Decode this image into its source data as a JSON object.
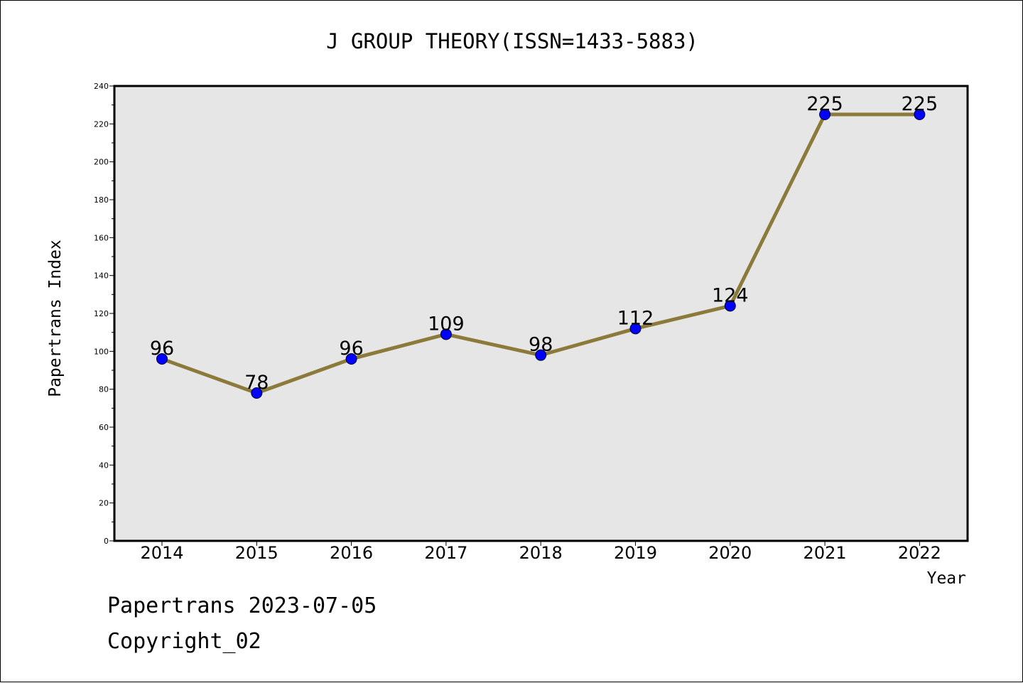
{
  "chart_data": {
    "type": "line",
    "title": "J GROUP THEORY(ISSN=1433-5883)",
    "xlabel": "Year",
    "ylabel": "Papertrans Index",
    "categories": [
      "2014",
      "2015",
      "2016",
      "2017",
      "2018",
      "2019",
      "2020",
      "2021",
      "2022"
    ],
    "series": [
      {
        "values": [
          96,
          78,
          96,
          109,
          98,
          112,
          124,
          225,
          225
        ]
      }
    ],
    "ylim": [
      0,
      240
    ],
    "yticks": [
      0,
      20,
      40,
      60,
      80,
      100,
      120,
      140,
      160,
      180,
      200,
      220,
      240
    ],
    "grid": false,
    "colors": {
      "line": "#8b7a3a",
      "marker": "#0000ff",
      "plot_bg": "#e6e6e6"
    }
  },
  "footer": {
    "date_line": "Papertrans 2023-07-05",
    "copyright_line": "Copyright_02"
  }
}
